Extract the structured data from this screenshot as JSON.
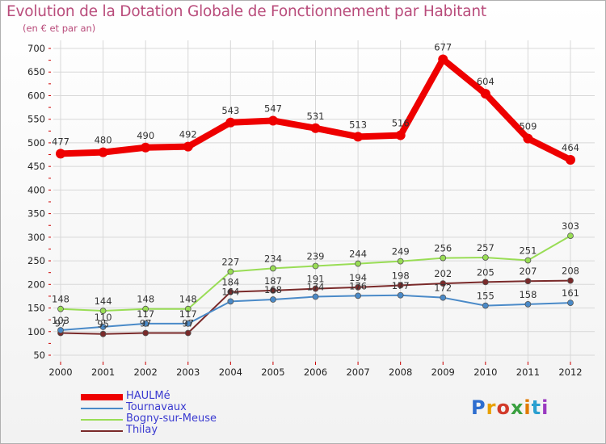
{
  "title": "Evolution de la Dotation Globale de Fonctionnement par Habitant",
  "subtitle": "(en € et par an)",
  "logo": "Proxiti",
  "colors": {
    "title": "#b94c7b",
    "grid": "#d8d8d8",
    "axis": "#cc0000"
  },
  "chart_data": {
    "type": "line",
    "title": "Evolution de la Dotation Globale de Fonctionnement par Habitant",
    "ylabel": "(en € et par an)",
    "xlabel": "",
    "ylim": [
      50,
      700
    ],
    "yticks": [
      50,
      100,
      150,
      200,
      250,
      300,
      350,
      400,
      450,
      500,
      550,
      600,
      650,
      700
    ],
    "categories": [
      "2000",
      "2001",
      "2002",
      "2003",
      "2004",
      "2005",
      "2006",
      "2007",
      "2008",
      "2009",
      "2010",
      "2011",
      "2012"
    ],
    "grid": true,
    "legend": "bottom-left",
    "series": [
      {
        "name": "HAULMé",
        "color": "#ee0000",
        "values": [
          477,
          480,
          490,
          492,
          543,
          547,
          531,
          513,
          516,
          677,
          604,
          509,
          464
        ],
        "labels": [
          "477",
          "480",
          "490",
          "492",
          "543",
          "547",
          "531",
          "513",
          "516",
          "677",
          "604",
          "509",
          "464"
        ]
      },
      {
        "name": "Tournavaux",
        "color": "#4a8ac8",
        "values": [
          103,
          110,
          117,
          117,
          164,
          168,
          174,
          176,
          177,
          172,
          155,
          158,
          161
        ],
        "labels": [
          "103",
          "110",
          "117",
          "117",
          "164",
          "168",
          "174",
          "176",
          "177",
          "172",
          "155",
          "158",
          "161"
        ]
      },
      {
        "name": "Bogny-sur-Meuse",
        "color": "#99dd55",
        "values": [
          148,
          144,
          148,
          148,
          227,
          234,
          239,
          244,
          249,
          256,
          257,
          251,
          303
        ],
        "labels": [
          "148",
          "144",
          "148",
          "148",
          "227",
          "234",
          "239",
          "244",
          "249",
          "256",
          "257",
          "251",
          "303"
        ]
      },
      {
        "name": "Thilay",
        "color": "#7a2a2a",
        "values": [
          97,
          95,
          97,
          97,
          184,
          187,
          191,
          194,
          198,
          202,
          205,
          207,
          208
        ],
        "labels": [
          "97",
          "95",
          "97",
          "97",
          "184",
          "187",
          "191",
          "194",
          "198",
          "202",
          "205",
          "207",
          "208"
        ]
      }
    ]
  }
}
